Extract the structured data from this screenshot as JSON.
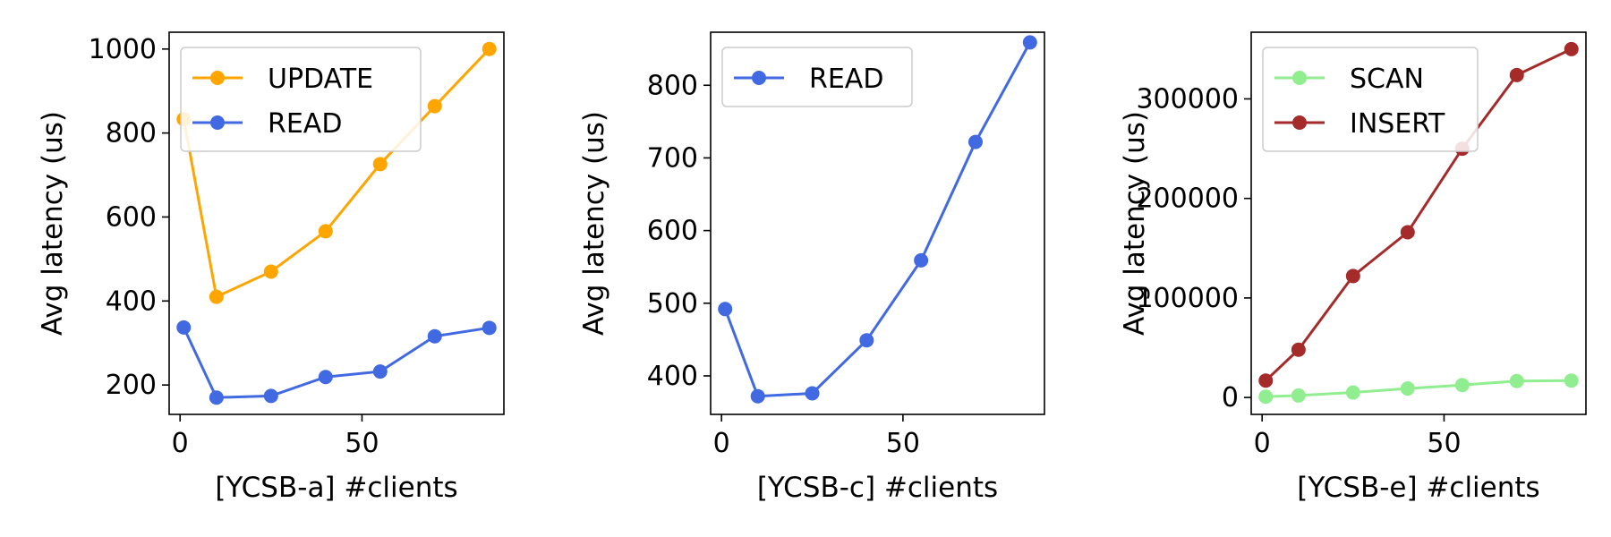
{
  "colors": {
    "orange": "#FFA500",
    "royalblue": "#4169E1",
    "lightgreen": "#90EE90",
    "brown": "#A52A2A"
  },
  "chart_data": [
    {
      "type": "line",
      "xlabel": "[YCSB-a]  #clients",
      "ylabel": "Avg latency (us)",
      "xlim": [
        -3,
        89
      ],
      "ylim": [
        130,
        1040
      ],
      "xticks": [
        0,
        50
      ],
      "yticks": [
        200,
        400,
        600,
        800,
        1000
      ],
      "grid": false,
      "legend_position": "upper-left",
      "x": [
        1,
        10,
        25,
        40,
        55,
        70,
        85
      ],
      "series": [
        {
          "name": "UPDATE",
          "color": "#FFA500",
          "marker": "circle",
          "values": [
            833,
            410,
            470,
            566,
            726,
            864,
            1000
          ]
        },
        {
          "name": "READ",
          "color": "#4169E1",
          "marker": "circle",
          "values": [
            337,
            170,
            174,
            219,
            232,
            316,
            336
          ]
        }
      ]
    },
    {
      "type": "line",
      "xlabel": "[YCSB-c]  #clients",
      "ylabel": "Avg latency (us)",
      "xlim": [
        -3,
        89
      ],
      "ylim": [
        347,
        873
      ],
      "xticks": [
        0,
        50
      ],
      "yticks": [
        400,
        500,
        600,
        700,
        800
      ],
      "grid": false,
      "legend_position": "upper-left",
      "x": [
        1,
        10,
        25,
        40,
        55,
        70,
        85
      ],
      "series": [
        {
          "name": "READ",
          "color": "#4169E1",
          "marker": "circle",
          "values": [
            492,
            372,
            376,
            449,
            559,
            722,
            859
          ]
        }
      ]
    },
    {
      "type": "line",
      "xlabel": "[YCSB-e]  #clients",
      "ylabel": "Avg latency (us)",
      "xlim": [
        -3,
        89
      ],
      "ylim": [
        -17000,
        367000
      ],
      "xticks": [
        0,
        50
      ],
      "yticks": [
        0,
        100000,
        200000,
        300000
      ],
      "grid": false,
      "legend_position": "upper-left",
      "x": [
        1,
        10,
        25,
        40,
        55,
        70,
        85
      ],
      "series": [
        {
          "name": "SCAN",
          "color": "#90EE90",
          "marker": "circle",
          "values": [
            800,
            2000,
            5000,
            9000,
            12500,
            16500,
            17000
          ]
        },
        {
          "name": "INSERT",
          "color": "#A52A2A",
          "marker": "circle",
          "values": [
            17000,
            48000,
            122000,
            166000,
            250000,
            324000,
            350000
          ]
        }
      ]
    }
  ]
}
